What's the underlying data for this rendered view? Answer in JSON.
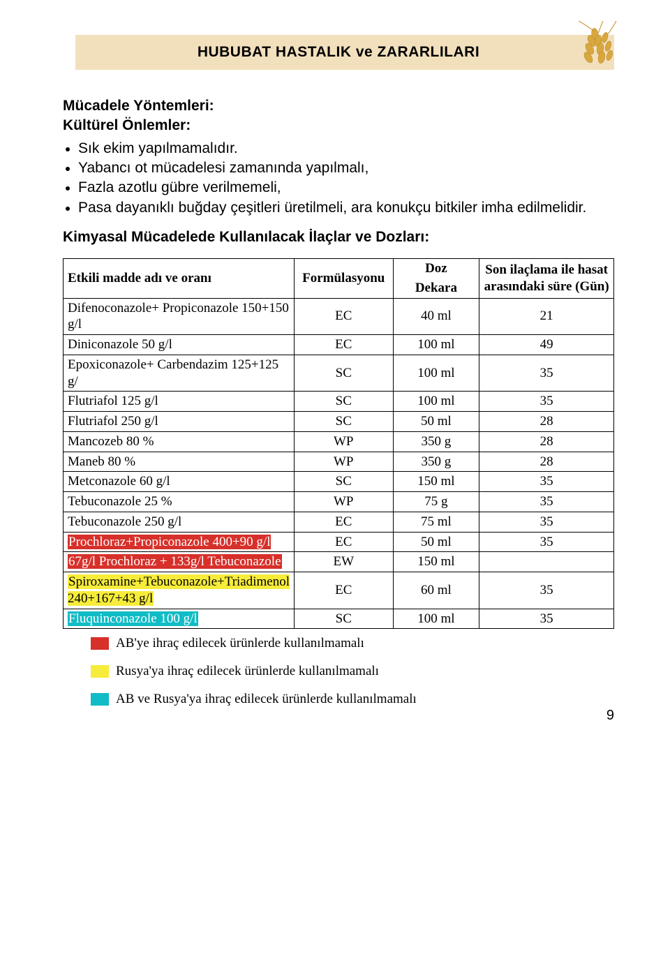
{
  "header": {
    "title": "HUBUBAT HASTALIK ve ZARARLILARI"
  },
  "section": {
    "title1": "Mücadele Yöntemleri:",
    "title2": "Kültürel Önlemler:",
    "bullets": [
      "Sık ekim yapılmamalıdır.",
      "Yabancı ot mücadelesi zamanında yapılmalı,",
      "Fazla azotlu gübre verilmemeli,",
      "Pasa dayanıklı buğday çeşitleri üretilmeli, ara konukçu bitkiler imha edilmelidir."
    ],
    "sub": "Kimyasal Mücadelede Kullanılacak İlaçlar ve Dozları:"
  },
  "table": {
    "headers": {
      "c1": "Etkili madde adı ve oranı",
      "c2": "Formülasyonu",
      "c3a": "Doz",
      "c3b": "Dekara",
      "c4": "Son ilaçlama ile hasat arasındaki süre (Gün)"
    },
    "rows": [
      {
        "name": "Difenoconazole+ Propiconazole 150+150 g/l",
        "form": "EC",
        "doz": "40 ml",
        "gun": "21",
        "hl": null
      },
      {
        "name": "Diniconazole 50 g/l",
        "form": "EC",
        "doz": "100 ml",
        "gun": "49",
        "hl": null
      },
      {
        "name": "Epoxiconazole+ Carbendazim 125+125 g/",
        "form": "SC",
        "doz": "100 ml",
        "gun": "35",
        "hl": null
      },
      {
        "name": "Flutriafol 125 g/l",
        "form": "SC",
        "doz": "100 ml",
        "gun": "35",
        "hl": null
      },
      {
        "name": "Flutriafol 250 g/l",
        "form": "SC",
        "doz": "50 ml",
        "gun": "28",
        "hl": null
      },
      {
        "name": "Mancozeb 80 %",
        "form": "WP",
        "doz": "350 g",
        "gun": "28",
        "hl": null
      },
      {
        "name": "Maneb 80 %",
        "form": "WP",
        "doz": "350 g",
        "gun": "28",
        "hl": null
      },
      {
        "name": "Metconazole 60 g/l",
        "form": "SC",
        "doz": "150 ml",
        "gun": "35",
        "hl": null
      },
      {
        "name": "Tebuconazole 25 %",
        "form": "WP",
        "doz": "75 g",
        "gun": "35",
        "hl": null
      },
      {
        "name": "Tebuconazole 250 g/l",
        "form": "EC",
        "doz": "75 ml",
        "gun": "35",
        "hl": null
      },
      {
        "name": "Prochloraz+Propiconazole 400+90 g/l",
        "form": "EC",
        "doz": "50 ml",
        "gun": "35",
        "hl": "red"
      },
      {
        "name": "67g/l Prochloraz + 133g/l Tebuconazole",
        "form": "EW",
        "doz": "150 ml",
        "gun": "",
        "hl": "red"
      },
      {
        "name": "Spiroxamine+Tebuconazole+Triadimenol 240+167+43 g/l",
        "form": "EC",
        "doz": "60 ml",
        "gun": "35",
        "hl": "yellow"
      },
      {
        "name": "Fluquinconazole 100 g/l",
        "form": "SC",
        "doz": "100 ml",
        "gun": "35",
        "hl": "teal"
      }
    ]
  },
  "legend": [
    {
      "color": "#d7302a",
      "text": "AB'ye ihraç edilecek ürünlerde kullanılmamalı"
    },
    {
      "color": "#f7ec3a",
      "text": "Rusya'ya ihraç edilecek ürünlerde kullanılmamalı"
    },
    {
      "color": "#10bcc5",
      "text": "AB ve Rusya'ya ihraç edilecek ürünlerde kullanılmamalı"
    }
  ],
  "pageNumber": "9",
  "colors": {
    "headerBg": "#f2e0bd",
    "red": "#d7302a",
    "yellow": "#f7ec3a",
    "teal": "#10bcc5"
  }
}
